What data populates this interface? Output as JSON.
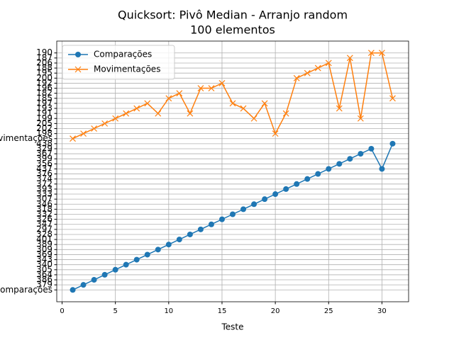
{
  "chart_data": {
    "type": "line",
    "title": "Quicksort: Pivô Median - Arranjo random",
    "subtitle": "100 elementos",
    "x_label": "Teste",
    "x": [
      1,
      2,
      3,
      4,
      5,
      6,
      7,
      8,
      9,
      10,
      11,
      12,
      13,
      14,
      15,
      16,
      17,
      18,
      19,
      20,
      21,
      22,
      23,
      24,
      25,
      26,
      27,
      28,
      29,
      30,
      31
    ],
    "y_scale": "category",
    "ycategories": [
      "Comparações",
      "379",
      "386",
      "364",
      "305",
      "340",
      "343",
      "369",
      "309",
      "389",
      "401",
      "328",
      "297",
      "347",
      "326",
      "332",
      "318",
      "346",
      "307",
      "333",
      "393",
      "372",
      "374",
      "376",
      "437",
      "356",
      "399",
      "367",
      "329",
      "438",
      "Movimentações",
      "198",
      "202",
      "205",
      "199",
      "191",
      "193",
      "197",
      "185",
      "182",
      "196",
      "192",
      "200",
      "195",
      "188",
      "206",
      "187",
      "190"
    ],
    "series": [
      {
        "name": "Comparações",
        "color": "#1f77b4",
        "marker": "circle",
        "values": [
          "Comparações",
          "379",
          "386",
          "364",
          "305",
          "340",
          "343",
          "369",
          "309",
          "389",
          "401",
          "328",
          "297",
          "347",
          "326",
          "332",
          "318",
          "346",
          "307",
          "333",
          "393",
          "372",
          "374",
          "376",
          "437",
          "356",
          "399",
          "367",
          "329",
          "437",
          "438"
        ]
      },
      {
        "name": "Movimentações",
        "color": "#ff7f0e",
        "marker": "x",
        "values": [
          "Movimentações",
          "198",
          "202",
          "205",
          "199",
          "191",
          "193",
          "197",
          "191",
          "185",
          "182",
          "191",
          "196",
          "196",
          "192",
          "197",
          "193",
          "199",
          "197",
          "198",
          "191",
          "200",
          "195",
          "188",
          "206",
          "193",
          "187",
          "199",
          "190",
          "190",
          "185"
        ]
      }
    ],
    "xlim": [
      -0.5,
      32.5
    ],
    "xticks": [
      0,
      5,
      10,
      15,
      20,
      25,
      30
    ],
    "ylim": [
      -2.35,
      49.35
    ],
    "grid": true,
    "legend": "upper left"
  }
}
